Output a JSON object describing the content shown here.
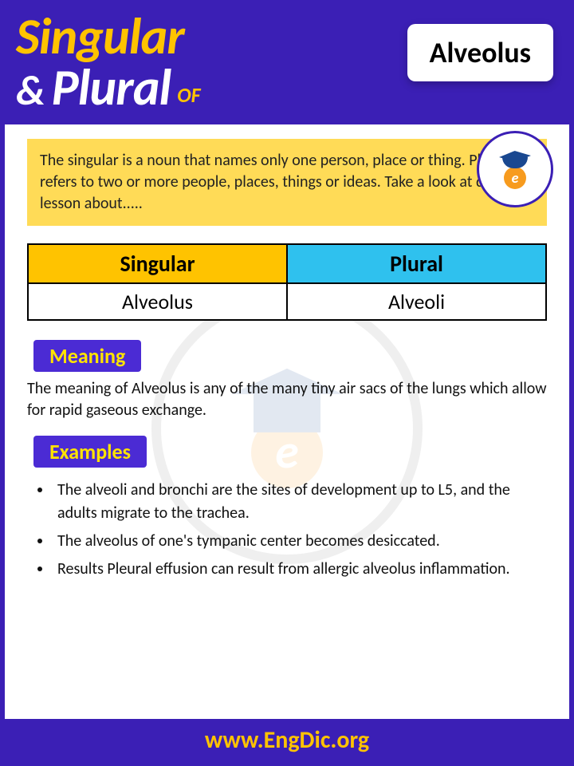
{
  "header": {
    "line1": "Singular",
    "amp": "&",
    "plural": "Plural",
    "of": "OF",
    "word": "Alveolus"
  },
  "intro": "The singular is a noun that names only one person, place or thing. Plural refers to two or more people, places, things or ideas. Take a look at detailed lesson about.....",
  "table": {
    "header_singular": "Singular",
    "header_plural": "Plural",
    "singular": "Alveolus",
    "plural": "Alveoli",
    "colors": {
      "singular_bg": "#ffc300",
      "plural_bg": "#2fc1ee"
    }
  },
  "sections": {
    "meaning_label": "Meaning",
    "meaning_text": "The meaning of Alveolus is any of the many tiny air sacs of the lungs which allow for rapid gaseous exchange.",
    "examples_label": "Examples",
    "examples": [
      "The alveoli and bronchi are the sites of development up to L5, and the adults migrate to the trachea.",
      "The alveolus of one's tympanic center becomes desiccated.",
      "Results Pleural effusion can result from allergic alveolus inflammation."
    ]
  },
  "footer": "www.EngDic.org",
  "logo": {
    "site": "www.EngDic.org",
    "letter": "e"
  },
  "colors": {
    "primary": "#3b1fb5",
    "accent": "#ffc300",
    "intro_bg": "#ffdb57",
    "label_bg": "#4b2bd4",
    "label_fg": "#ffe300"
  }
}
